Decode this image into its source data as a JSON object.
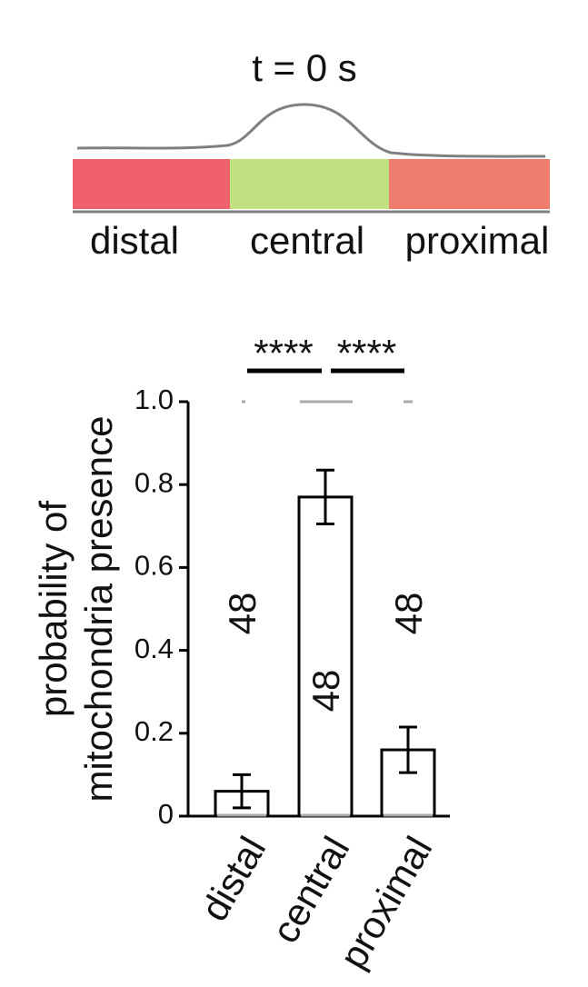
{
  "schematic": {
    "title": "t = 0 s",
    "labels": [
      "distal",
      "central",
      "proximal"
    ]
  },
  "chart_data": {
    "type": "bar",
    "ylabel": [
      "probability of",
      "mitochondria presence"
    ],
    "categories": [
      "distal",
      "central",
      "proximal"
    ],
    "values": [
      0.06,
      0.77,
      0.16
    ],
    "errors": [
      0.04,
      0.065,
      0.055
    ],
    "n": [
      48,
      48,
      48
    ],
    "significance": [
      "****",
      "****"
    ],
    "color": "#ffffff",
    "ylim": [
      0,
      1
    ],
    "yticks": [
      0,
      0.2,
      0.4,
      0.6,
      0.8,
      {
        "value": 1,
        "label": "1.0"
      }
    ]
  }
}
